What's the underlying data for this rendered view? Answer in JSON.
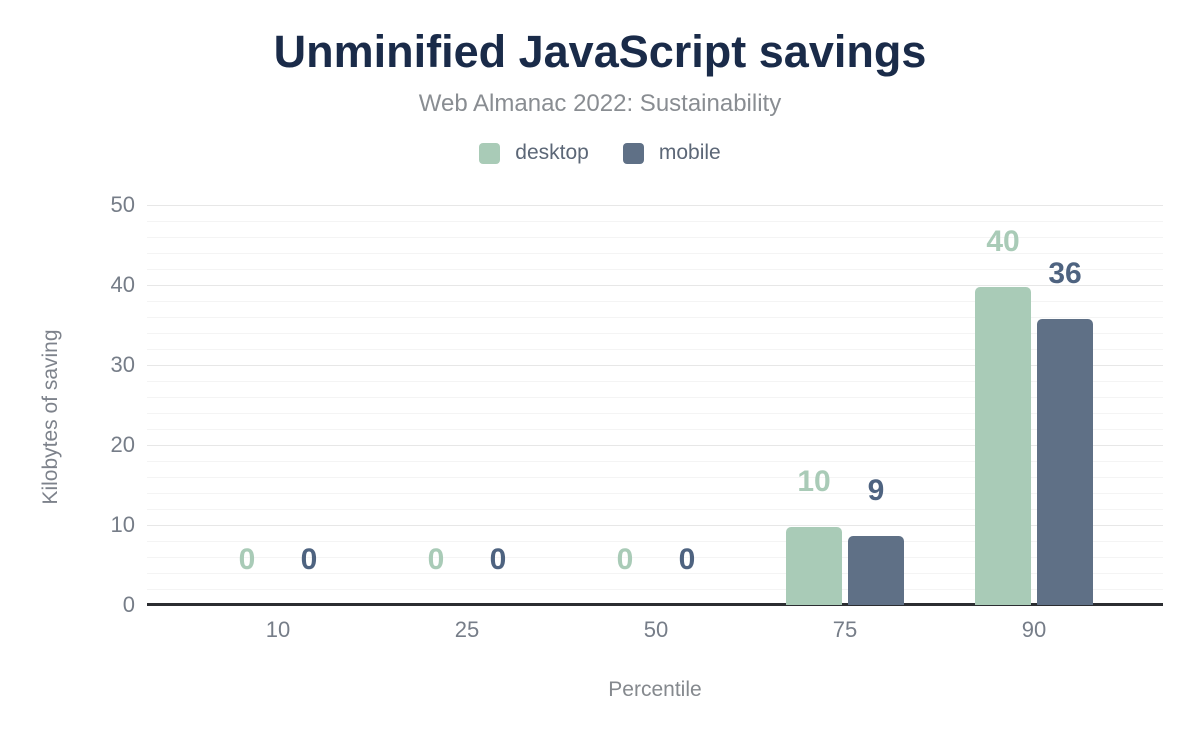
{
  "header": {
    "title": "Unminified JavaScript savings",
    "subtitle": "Web Almanac 2022: Sustainability"
  },
  "chart_data": {
    "type": "bar",
    "title": "Unminified JavaScript savings",
    "subtitle": "Web Almanac 2022: Sustainability",
    "categories": [
      "10",
      "25",
      "50",
      "75",
      "90"
    ],
    "series": [
      {
        "name": "desktop",
        "color": "#a9cbb7",
        "label_color": "#a9cbb7",
        "values": [
          0,
          0,
          0,
          10,
          40
        ],
        "bar_heights_estimated": [
          0,
          0,
          0,
          9.7,
          39.7
        ]
      },
      {
        "name": "mobile",
        "color": "#5f7086",
        "label_color": "#4e6380",
        "values": [
          0,
          0,
          0,
          9,
          36
        ],
        "bar_heights_estimated": [
          0,
          0,
          0,
          8.6,
          35.8
        ]
      }
    ],
    "xlabel": "Percentile",
    "ylabel": "Kilobytes of saving",
    "ylim": [
      0,
      50
    ],
    "yticks": [
      0,
      10,
      20,
      30,
      40,
      50
    ],
    "grid": {
      "minor_step": 2,
      "major_step": 10,
      "enabled": true
    },
    "legend_position": "top",
    "axis_line_color": "#2b2d31"
  }
}
